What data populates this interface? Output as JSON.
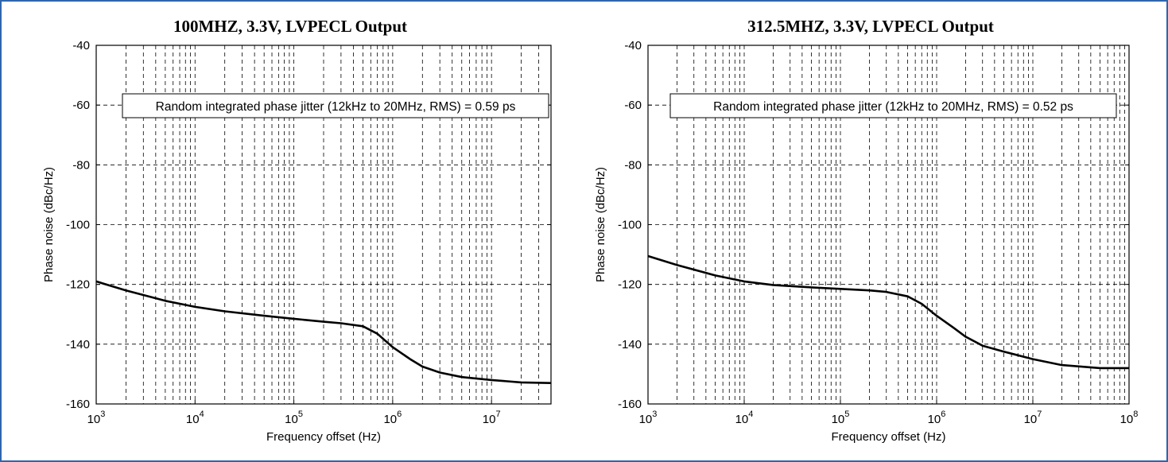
{
  "charts": [
    {
      "title": "100MHZ, 3.3V, LVPECL Output",
      "annotation": "Random integrated phase jitter (12kHz to 20MHz, RMS) = 0.59 ps",
      "xlabel": "Frequency offset (Hz)",
      "ylabel": "Phase noise (dBc/Hz)"
    },
    {
      "title": "312.5MHZ, 3.3V, LVPECL Output",
      "annotation": "Random integrated phase jitter (12kHz to 20MHz, RMS) = 0.52 ps",
      "xlabel": "Frequency offset (Hz)",
      "ylabel": "Phase noise (dBc/Hz)"
    }
  ],
  "chart_data": [
    {
      "type": "line",
      "title": "100MHZ, 3.3V, LVPECL Output",
      "xlabel": "Frequency offset (Hz)",
      "ylabel": "Phase noise (dBc/Hz)",
      "xscale": "log",
      "xlim": [
        1000,
        40000000
      ],
      "ylim": [
        -160,
        -40
      ],
      "grid": true,
      "x_tick_labels": [
        "10^3",
        "10^4",
        "10^5",
        "10^6",
        "10^7"
      ],
      "y_ticks": [
        -40,
        -60,
        -80,
        -100,
        -120,
        -140,
        -160
      ],
      "annotation": "Random integrated phase jitter (12kHz to 20MHz, RMS) = 0.59 ps",
      "series": [
        {
          "x": [
            1000,
            2000,
            5000,
            10000,
            20000,
            50000,
            100000,
            200000,
            300000,
            500000,
            700000,
            1000000,
            1500000,
            2000000,
            3000000,
            5000000,
            10000000,
            20000000,
            40000000
          ],
          "y": [
            -119,
            -122,
            -125.5,
            -127.5,
            -129,
            -130.5,
            -131.5,
            -132.5,
            -133,
            -134,
            -136.5,
            -141,
            -145,
            -147.5,
            -149.5,
            -151,
            -152,
            -152.8,
            -153
          ]
        }
      ]
    },
    {
      "type": "line",
      "title": "312.5MHZ, 3.3V, LVPECL Output",
      "xlabel": "Frequency offset (Hz)",
      "ylabel": "Phase noise (dBc/Hz)",
      "xscale": "log",
      "xlim": [
        1000,
        100000000
      ],
      "ylim": [
        -160,
        -40
      ],
      "grid": true,
      "x_tick_labels": [
        "10^3",
        "10^4",
        "10^5",
        "10^6",
        "10^7",
        "10^8"
      ],
      "y_ticks": [
        -40,
        -60,
        -80,
        -100,
        -120,
        -140,
        -160
      ],
      "annotation": "Random integrated phase jitter (12kHz to 20MHz, RMS) = 0.52 ps",
      "series": [
        {
          "x": [
            1000,
            2000,
            5000,
            10000,
            20000,
            50000,
            100000,
            200000,
            300000,
            500000,
            700000,
            1000000,
            1500000,
            2000000,
            3000000,
            5000000,
            10000000,
            20000000,
            50000000,
            100000000
          ],
          "y": [
            -110.5,
            -113.5,
            -117,
            -119,
            -120.2,
            -121,
            -121.5,
            -122,
            -122.5,
            -124,
            -126.5,
            -130.5,
            -134.5,
            -137.5,
            -140.5,
            -142.5,
            -145,
            -147,
            -148,
            -148
          ]
        }
      ]
    }
  ]
}
